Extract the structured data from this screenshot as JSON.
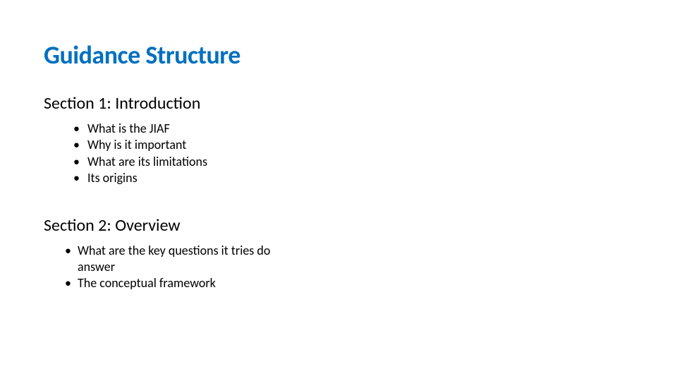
{
  "title": {
    "text": "Guidance Structure",
    "color": "#0070c0",
    "fontsize": 36,
    "fontweight": 600
  },
  "sections": [
    {
      "heading": "Section 1: Introduction",
      "heading_color": "#222222",
      "heading_fontsize": 24,
      "bullets": [
        "What is the JIAF",
        "Why is it important",
        "What are its limitations",
        "Its origins"
      ],
      "bullet_color": "#222222",
      "bullet_fontsize": 18
    },
    {
      "heading": "Section 2: Overview",
      "heading_color": "#222222",
      "heading_fontsize": 24,
      "bullets": [
        "What are the key questions it tries do answer",
        "The conceptual framework"
      ],
      "bullet_color": "#222222",
      "bullet_fontsize": 18
    }
  ],
  "background_color": "#ffffff"
}
